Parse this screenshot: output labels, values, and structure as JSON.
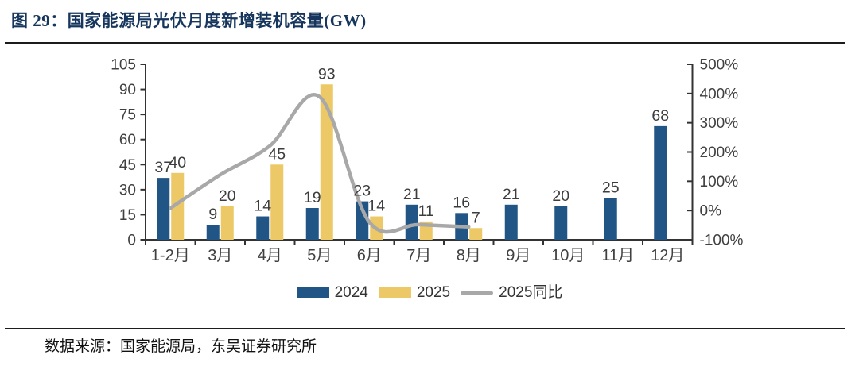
{
  "figure": {
    "title": "图 29：国家能源局光伏月度新增装机容量(GW)",
    "source_note": "数据来源：国家能源局，东吴证券研究所"
  },
  "chart_data": {
    "type": "bar",
    "title": "国家能源局光伏月度新增装机容量(GW)",
    "categories": [
      "1-2月",
      "3月",
      "4月",
      "5月",
      "6月",
      "7月",
      "8月",
      "9月",
      "10月",
      "11月",
      "12月"
    ],
    "series": [
      {
        "name": "2024",
        "type": "bar",
        "axis": "left",
        "color": "#215586",
        "values": [
          37,
          9,
          14,
          19,
          23,
          21,
          16,
          21,
          20,
          25,
          68
        ]
      },
      {
        "name": "2025",
        "type": "bar",
        "axis": "left",
        "color": "#ecc966",
        "values": [
          40,
          20,
          45,
          93,
          14,
          11,
          7,
          null,
          null,
          null,
          null
        ]
      },
      {
        "name": "2025同比",
        "type": "line",
        "axis": "right",
        "color": "#a8a8a8",
        "unit": "%",
        "values": [
          8,
          122,
          221,
          389,
          -39,
          -48,
          -56,
          null,
          null,
          null,
          null
        ]
      }
    ],
    "bar_value_labels_shown": true,
    "left_axis": {
      "min": 0,
      "max": 105,
      "step": 15,
      "tick_labels": [
        "0",
        "15",
        "30",
        "45",
        "60",
        "75",
        "90",
        "105"
      ]
    },
    "right_axis": {
      "min": -100,
      "max": 500,
      "step": 100,
      "tick_labels": [
        "-100%",
        "0%",
        "100%",
        "200%",
        "300%",
        "400%",
        "500%"
      ]
    },
    "legend_position": "bottom",
    "grid": false
  },
  "colors": {
    "title_text": "#17365d",
    "divider": "#1c1c1c",
    "axis_line": "#333333",
    "tick_label": "#404040",
    "value_label": "#3d3d3d"
  }
}
